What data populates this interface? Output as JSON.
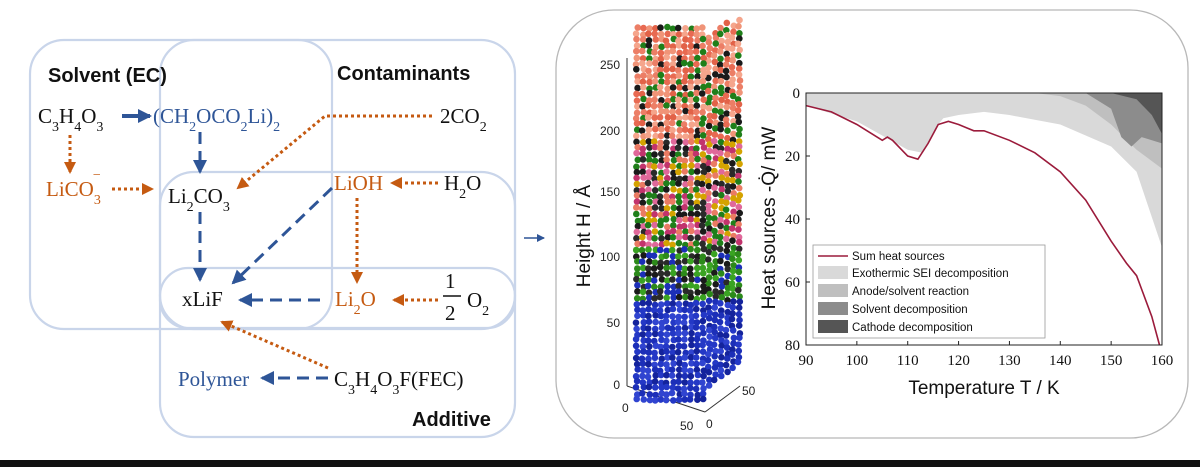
{
  "diagram": {
    "boxes": {
      "solvent": "Solvent (EC)",
      "contaminants": "Contaminants",
      "additive": "Additive"
    },
    "species": {
      "ec": "C3H4O3",
      "ec_product": "(CH2OCO2Li)2",
      "co2": "2CO2",
      "lico3": "LiCO3-",
      "li2co3": "Li2CO3",
      "lioh": "LiOH",
      "h2o": "H2O",
      "lif": "xLiF",
      "li2o": "Li2O",
      "half": "1",
      "half_den": "2",
      "o2": "O2",
      "polymer": "Polymer",
      "fec": "C3H4O3F(FEC)"
    },
    "colors": {
      "blue": "#2e5597",
      "orange": "#c55a11",
      "box": "#c9d5ea",
      "black": "#111111"
    }
  },
  "structure_3d": {
    "ylabel": "Height H / Å",
    "yticks": [
      "250",
      "200",
      "150",
      "100",
      "50",
      "0"
    ],
    "bottom_ticks": {
      "x0": "0",
      "x50": "50",
      "z0": "0",
      "z50": "50"
    },
    "layers": [
      {
        "name": "top",
        "color": "#ea7b63"
      },
      {
        "name": "middle",
        "color": "#1a1a1a"
      },
      {
        "name": "lower",
        "color": "#2c8a1a"
      },
      {
        "name": "bottom",
        "color": "#1c2fb8"
      }
    ]
  },
  "chart_data": {
    "type": "area",
    "xlabel": "Temperature T / K",
    "ylabel": "Heat sources -Q̇/ mW",
    "xlim": [
      90,
      160
    ],
    "ylim": [
      80,
      0
    ],
    "xticks": [
      90,
      100,
      110,
      120,
      130,
      140,
      150,
      160
    ],
    "yticks": [
      0,
      20,
      40,
      60,
      80
    ],
    "legend_position": "left",
    "series": [
      {
        "name": "Sum heat sources",
        "kind": "line",
        "color": "#9b1b3b",
        "x": [
          90,
          95,
          100,
          103,
          105,
          106,
          107,
          110,
          112,
          114,
          116,
          118,
          120,
          123,
          125,
          130,
          135,
          140,
          145,
          150,
          153,
          155,
          158,
          159.5
        ],
        "y": [
          4,
          6,
          10,
          13,
          15,
          14,
          15,
          20,
          21,
          16,
          10,
          9,
          10,
          12,
          12,
          15,
          19,
          25,
          34,
          47,
          54,
          58,
          71,
          80
        ]
      },
      {
        "name": "Exothermic SEI decomposition",
        "kind": "area",
        "color": "#d9d9d9",
        "x": [
          90,
          100,
          110,
          113,
          116,
          117,
          120,
          125,
          130,
          140,
          150,
          155,
          160
        ],
        "y_top": [
          0,
          0,
          0,
          0,
          0,
          0,
          0,
          0,
          0,
          0,
          0,
          0,
          0
        ],
        "y_bottom": [
          4,
          9,
          18,
          19,
          10,
          8,
          7,
          6,
          7,
          10,
          17,
          25,
          49
        ]
      },
      {
        "name": "Anode/solvent reaction",
        "kind": "area",
        "color": "#bfbfbf",
        "x": [
          135,
          140,
          145,
          150,
          155,
          160
        ],
        "y_top": [
          0,
          0,
          0,
          0,
          0,
          0
        ],
        "y_bottom": [
          0,
          1,
          4,
          10,
          18,
          24
        ]
      },
      {
        "name": "Solvent decomposition",
        "kind": "area",
        "color": "#8c8c8c",
        "x": [
          145,
          150,
          152,
          154,
          156,
          160
        ],
        "y_top": [
          0,
          0,
          0,
          0,
          0,
          0
        ],
        "y_bottom": [
          0,
          5,
          14,
          17,
          14,
          16
        ]
      },
      {
        "name": "Cathode decomposition",
        "kind": "area",
        "color": "#555555",
        "x": [
          150,
          155,
          158,
          160
        ],
        "y_top": [
          0,
          0,
          0,
          0
        ],
        "y_bottom": [
          0,
          2,
          7,
          13
        ]
      }
    ]
  }
}
